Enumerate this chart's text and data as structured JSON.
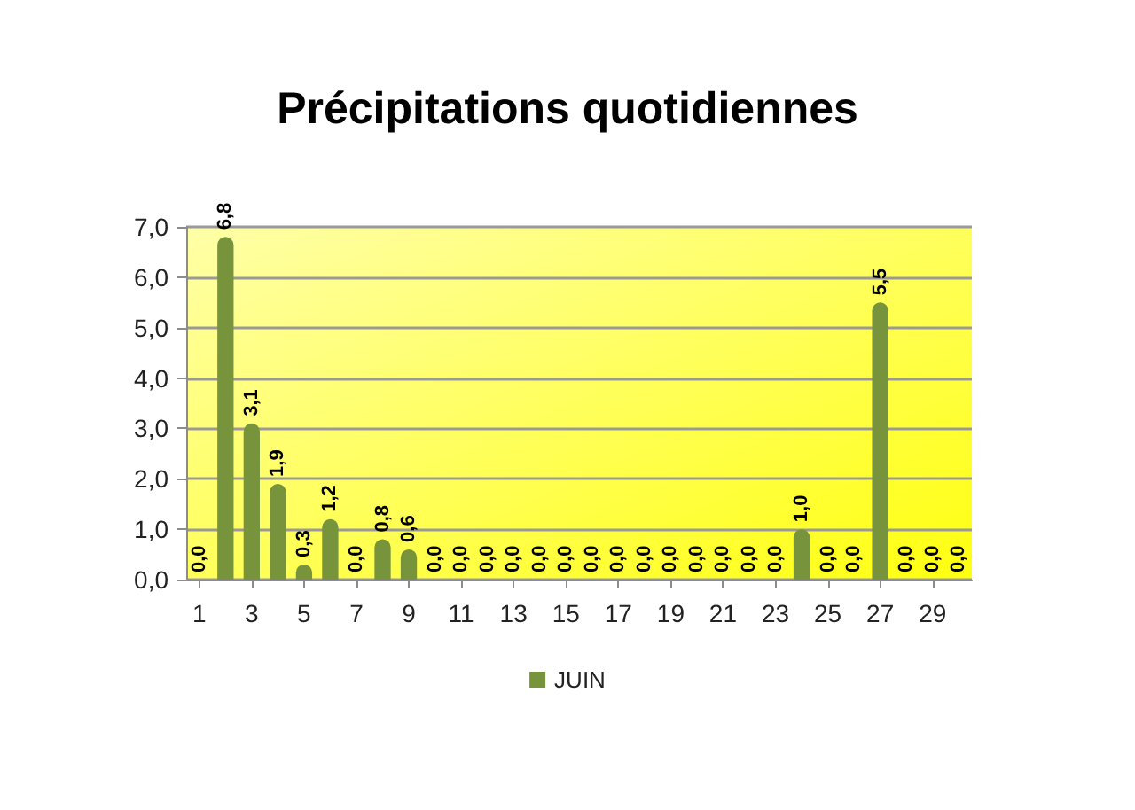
{
  "chart_data": {
    "type": "bar",
    "title": "Précipitations quotidiennes",
    "x": [
      1,
      2,
      3,
      4,
      5,
      6,
      7,
      8,
      9,
      10,
      11,
      12,
      13,
      14,
      15,
      16,
      17,
      18,
      19,
      20,
      21,
      22,
      23,
      24,
      25,
      26,
      27,
      28,
      29,
      30
    ],
    "series": [
      {
        "name": "JUIN",
        "color": "#77933c",
        "values": [
          0,
          6.8,
          3.1,
          1.9,
          0.3,
          1.2,
          0,
          0.8,
          0.6,
          0,
          0,
          0,
          0,
          0,
          0,
          0,
          0,
          0,
          0,
          0,
          0,
          0,
          0,
          1.0,
          0,
          0,
          5.5,
          0,
          0,
          0
        ],
        "value_labels": [
          "0,0",
          "6,8",
          "3,1",
          "1,9",
          "0,3",
          "1,2",
          "0,0",
          "0,8",
          "0,6",
          "0,0",
          "0,0",
          "0,0",
          "0,0",
          "0,0",
          "0,0",
          "0,0",
          "0,0",
          "0,0",
          "0,0",
          "0,0",
          "0,0",
          "0,0",
          "0,0",
          "1,0",
          "0,0",
          "0,0",
          "5,5",
          "0,0",
          "0,0",
          "0,0"
        ]
      }
    ],
    "xlim": [
      0.5,
      30.5
    ],
    "xticks": [
      1,
      3,
      5,
      7,
      9,
      11,
      13,
      15,
      17,
      19,
      21,
      23,
      25,
      27,
      29
    ],
    "ylim": [
      0,
      7
    ],
    "yticks": [
      {
        "value": 0,
        "label": "0,0"
      },
      {
        "value": 1,
        "label": "1,0"
      },
      {
        "value": 2,
        "label": "2,0"
      },
      {
        "value": 3,
        "label": "3,0"
      },
      {
        "value": 4,
        "label": "4,0"
      },
      {
        "value": 5,
        "label": "5,0"
      },
      {
        "value": 6,
        "label": "6,0"
      },
      {
        "value": 7,
        "label": "7,0"
      }
    ],
    "grid": "y",
    "legend": "bottom"
  }
}
